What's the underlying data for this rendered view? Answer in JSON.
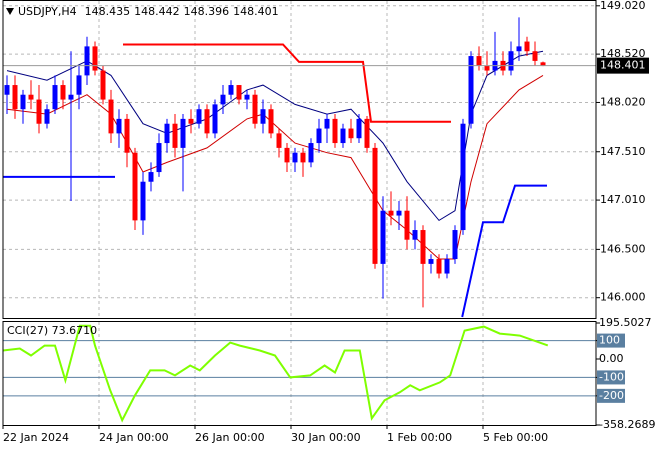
{
  "chart_data": [
    {
      "type": "candlestick",
      "header": {
        "symbol": "USDJPY,H4",
        "open": 148.435,
        "high": 148.442,
        "low": 148.396,
        "close": 148.401
      },
      "last": 148.401,
      "up_color": "#0000ff",
      "down_color": "#ff0000",
      "xlim": [
        -0.5,
        73.625
      ],
      "ylim": [
        145.79,
        149.08
      ],
      "grid": true,
      "yticks": [
        {
          "value": 149.02,
          "label": "149.020"
        },
        {
          "value": 148.52,
          "label": "148.520"
        },
        {
          "value": 148.02,
          "label": "148.020"
        },
        {
          "value": 147.51,
          "label": "147.510"
        },
        {
          "value": 147.01,
          "label": "147.010"
        },
        {
          "value": 146.5,
          "label": "146.500"
        },
        {
          "value": 146.0,
          "label": "146.000"
        }
      ],
      "xticks": [
        {
          "value": -0.5,
          "label": "22 Jan 2024"
        },
        {
          "value": 11.5,
          "label": "24 Jan 00:00"
        },
        {
          "value": 23.5,
          "label": "26 Jan 00:00"
        },
        {
          "value": 35.5,
          "label": "30 Jan 00:00"
        },
        {
          "value": 47.5,
          "label": "1 Feb 00:00"
        },
        {
          "value": 59.5,
          "label": "5 Feb 00:00"
        }
      ],
      "candles": [
        [
          148.1,
          148.3,
          147.9,
          148.2
        ],
        [
          148.2,
          148.3,
          147.85,
          147.95
        ],
        [
          147.95,
          148.15,
          147.8,
          148.1
        ],
        [
          148.1,
          148.25,
          147.95,
          148.05
        ],
        [
          148.05,
          148.2,
          147.7,
          147.8
        ],
        [
          147.8,
          148.0,
          147.75,
          147.95
        ],
        [
          147.95,
          148.3,
          147.9,
          148.2
        ],
        [
          148.2,
          148.25,
          147.95,
          148.05
        ],
        [
          148.05,
          148.55,
          147.0,
          148.1
        ],
        [
          148.1,
          148.4,
          147.95,
          148.3
        ],
        [
          148.3,
          148.7,
          148.2,
          148.6
        ],
        [
          148.6,
          148.65,
          148.3,
          148.35
        ],
        [
          148.35,
          148.4,
          148.0,
          148.05
        ],
        [
          148.05,
          148.15,
          147.6,
          147.7
        ],
        [
          147.7,
          147.95,
          147.55,
          147.85
        ],
        [
          147.85,
          147.9,
          147.35,
          147.5
        ],
        [
          147.5,
          147.55,
          146.7,
          146.8
        ],
        [
          146.8,
          147.3,
          146.65,
          147.2
        ],
        [
          147.2,
          147.4,
          147.1,
          147.3
        ],
        [
          147.3,
          147.7,
          147.25,
          147.6
        ],
        [
          147.6,
          147.85,
          147.5,
          147.8
        ],
        [
          147.8,
          147.9,
          147.45,
          147.55
        ],
        [
          147.55,
          147.9,
          147.1,
          147.85
        ],
        [
          147.85,
          147.95,
          147.7,
          147.8
        ],
        [
          147.8,
          148.0,
          147.75,
          147.95
        ],
        [
          147.95,
          148.0,
          147.65,
          147.7
        ],
        [
          147.7,
          148.05,
          147.65,
          148.0
        ],
        [
          148.0,
          148.2,
          147.9,
          148.1
        ],
        [
          148.1,
          148.25,
          148.05,
          148.2
        ],
        [
          148.2,
          148.2,
          148.0,
          148.05
        ],
        [
          148.05,
          148.15,
          147.95,
          148.1
        ],
        [
          148.1,
          148.15,
          147.75,
          147.8
        ],
        [
          147.8,
          148.05,
          147.7,
          147.95
        ],
        [
          147.95,
          148.0,
          147.65,
          147.7
        ],
        [
          147.7,
          147.75,
          147.45,
          147.55
        ],
        [
          147.55,
          147.6,
          147.3,
          147.4
        ],
        [
          147.4,
          147.55,
          147.3,
          147.5
        ],
        [
          147.5,
          147.55,
          147.25,
          147.4
        ],
        [
          147.4,
          147.65,
          147.35,
          147.6
        ],
        [
          147.6,
          147.85,
          147.5,
          147.75
        ],
        [
          147.75,
          147.9,
          147.6,
          147.85
        ],
        [
          147.85,
          147.9,
          147.55,
          147.6
        ],
        [
          147.6,
          147.8,
          147.55,
          147.75
        ],
        [
          147.75,
          147.85,
          147.6,
          147.65
        ],
        [
          147.65,
          147.9,
          147.6,
          147.85
        ],
        [
          147.85,
          147.88,
          147.5,
          147.55
        ],
        [
          147.55,
          147.6,
          146.3,
          146.35
        ],
        [
          146.35,
          147.05,
          145.99,
          146.9
        ],
        [
          146.9,
          147.1,
          146.75,
          146.85
        ],
        [
          146.85,
          147.0,
          146.7,
          146.9
        ],
        [
          146.9,
          147.05,
          146.5,
          146.6
        ],
        [
          146.6,
          146.8,
          146.5,
          146.7
        ],
        [
          146.7,
          146.75,
          145.9,
          146.35
        ],
        [
          146.35,
          146.45,
          146.25,
          146.4
        ],
        [
          146.4,
          146.45,
          146.2,
          146.25
        ],
        [
          146.25,
          146.45,
          146.2,
          146.4
        ],
        [
          146.4,
          146.75,
          146.35,
          146.7
        ],
        [
          146.7,
          147.85,
          146.65,
          147.8
        ],
        [
          147.8,
          148.55,
          147.75,
          148.5
        ],
        [
          148.5,
          148.6,
          148.35,
          148.4
        ],
        [
          148.4,
          148.55,
          148.3,
          148.35
        ],
        [
          148.35,
          148.75,
          148.3,
          148.45
        ],
        [
          148.45,
          148.55,
          148.3,
          148.35
        ],
        [
          148.35,
          148.65,
          148.3,
          148.55
        ],
        [
          148.55,
          148.9,
          148.45,
          148.6
        ],
        [
          148.65,
          148.7,
          148.5,
          148.55
        ],
        [
          148.55,
          148.65,
          148.4,
          148.45
        ],
        [
          148.435,
          148.442,
          148.396,
          148.401
        ]
      ],
      "series": [
        {
          "color": "#000080",
          "width": 1,
          "x": [
            0,
            5,
            10,
            13,
            17,
            20,
            25,
            30,
            32,
            36,
            40,
            43,
            47,
            50,
            54,
            56,
            58,
            60,
            64,
            67
          ],
          "values": [
            148.35,
            148.25,
            148.45,
            148.3,
            147.8,
            147.7,
            147.85,
            148.15,
            148.2,
            148.0,
            147.9,
            147.95,
            147.6,
            147.2,
            146.8,
            146.9,
            147.9,
            148.3,
            148.5,
            148.55
          ]
        },
        {
          "color": "#d00000",
          "width": 1,
          "x": [
            0,
            5,
            10,
            13,
            17,
            20,
            25,
            30,
            32,
            36,
            40,
            43,
            47,
            50,
            54,
            56,
            58,
            60,
            64,
            67
          ],
          "values": [
            147.95,
            147.9,
            148.1,
            147.9,
            147.3,
            147.4,
            147.55,
            147.85,
            147.9,
            147.6,
            147.5,
            147.45,
            146.9,
            146.7,
            146.4,
            146.4,
            147.2,
            147.8,
            148.15,
            148.3
          ]
        },
        {
          "color": "#ff0000",
          "width": 2,
          "x": [
            14.5,
            34.5,
            36.5,
            44.5,
            45.5,
            55.5
          ],
          "values": [
            148.62,
            148.62,
            148.44,
            148.44,
            147.82,
            147.82
          ]
        },
        {
          "color": "#0000ff",
          "width": 2,
          "x": [
            -0.5,
            13.5,
            14,
            56.9,
            59.5,
            62,
            63.5,
            67.5
          ],
          "values": [
            147.25,
            147.25,
            null,
            145.8,
            146.78,
            146.78,
            147.16,
            147.16
          ]
        }
      ]
    },
    {
      "type": "line",
      "title": "CCI(27) 73.6710",
      "color": "#7fff00",
      "level_color": "#5a7fa0",
      "xlim": [
        -0.5,
        73.625
      ],
      "ylim": [
        -358.2689,
        195.5027
      ],
      "yticks": [
        195.5027,
        100,
        {
          "value": 0,
          "label": "0.00"
        },
        -100,
        -200,
        -358.2689
      ],
      "levels": [
        100,
        -100,
        -200
      ],
      "x": [
        -0.5,
        1.6,
        3,
        4.7,
        6,
        7.3,
        9.1,
        10.4,
        11,
        12.9,
        14.4,
        16,
        17.9,
        19.7,
        21,
        22.9,
        24.1,
        26,
        27.9,
        29.1,
        31.6,
        33.5,
        35.4,
        37.9,
        39.7,
        41,
        42.2,
        44.1,
        45.6,
        47.2,
        49.1,
        50.4,
        51.6,
        54.1,
        55.4,
        57.2,
        59.6,
        61.6,
        64.1,
        67.6
      ],
      "values": [
        46,
        57,
        19,
        73,
        73,
        -116,
        181,
        181,
        73,
        -170,
        -332,
        -197,
        -62,
        -62,
        -89,
        -35,
        -62,
        19,
        89,
        73,
        46,
        19,
        -100,
        -89,
        -35,
        -73,
        46,
        46,
        -322,
        -224,
        -181,
        -143,
        -170,
        -127,
        -89,
        154,
        176,
        138,
        127,
        73.671
      ]
    }
  ]
}
